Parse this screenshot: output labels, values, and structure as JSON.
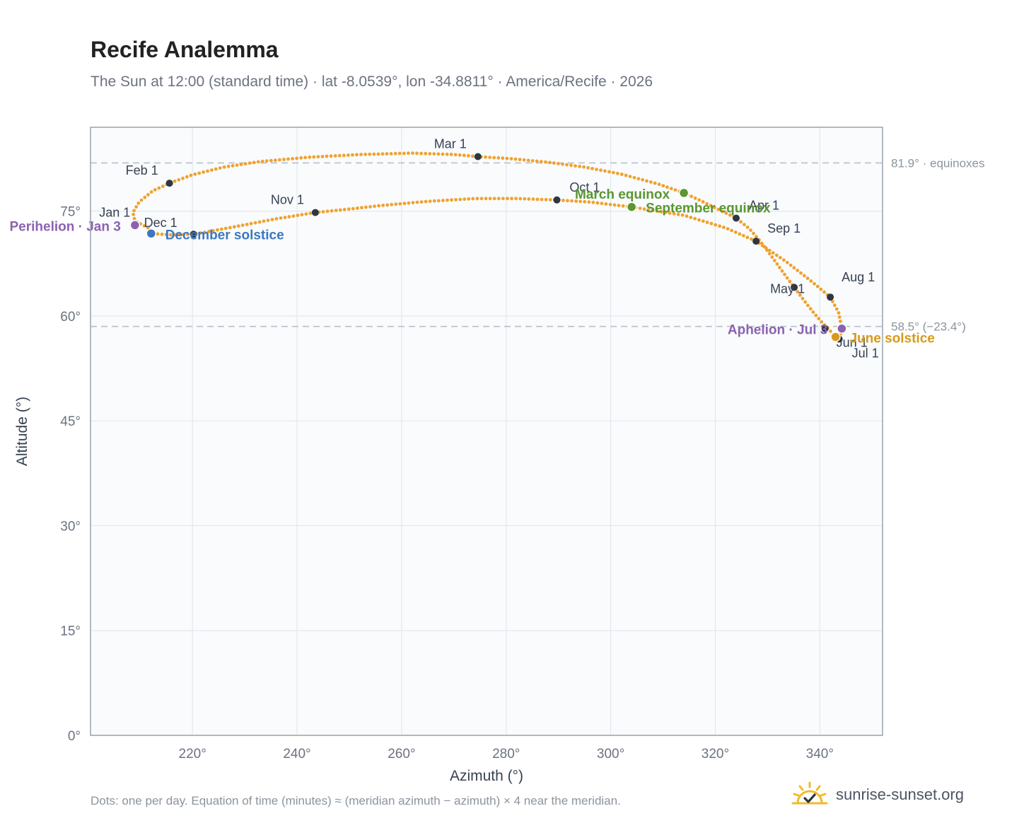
{
  "header": {
    "title": "Recife Analemma",
    "subtitle": "The Sun at 12:00 (standard time) · lat -8.0539°, lon -34.8811° · America/Recife · 2026"
  },
  "footer": {
    "note": "Dots: one per day. Equation of time (minutes) ≈ (meridian azimuth − azimuth) × 4 near the meridian.",
    "brand": "sunrise-sunset.org"
  },
  "icons": {
    "brand": "sun-check-icon"
  },
  "colors": {
    "analemma": "#f0a22e",
    "month_marker": "#2f3640",
    "equinox": "#5a9632",
    "december_solstice": "#3b78c0",
    "june_solstice": "#d89a1a",
    "apsis": "#8c62b0",
    "reference_line": "#b7c0cc",
    "plot_bg": "#f9fbfd",
    "grid": "#e3e8ef",
    "frame": "#9aa3ae"
  },
  "chart_data": {
    "type": "scatter",
    "title": "Recife Analemma",
    "xlabel": "Azimuth (°)",
    "ylabel": "Altitude (°)",
    "xlim": [
      200.5,
      352
    ],
    "ylim": [
      0,
      87
    ],
    "xticks": [
      220,
      240,
      260,
      280,
      300,
      320,
      340
    ],
    "xtick_labels": [
      "220°",
      "240°",
      "260°",
      "280°",
      "300°",
      "320°",
      "340°"
    ],
    "yticks": [
      0,
      15,
      30,
      45,
      60,
      75
    ],
    "ytick_labels": [
      "0°",
      "15°",
      "30°",
      "45°",
      "60°",
      "75°"
    ],
    "grid": true,
    "analemma_path": [
      [
        211.5,
        72.6
      ],
      [
        209.0,
        73.6
      ],
      [
        208.6,
        74.8
      ],
      [
        209.8,
        76.3
      ],
      [
        212.4,
        77.9
      ],
      [
        215.6,
        79.0
      ],
      [
        220.0,
        80.2
      ],
      [
        226.0,
        81.3
      ],
      [
        233.0,
        82.1
      ],
      [
        242.0,
        82.7
      ],
      [
        252.0,
        83.1
      ],
      [
        262.0,
        83.3
      ],
      [
        270.0,
        83.1
      ],
      [
        274.6,
        82.8
      ],
      [
        281.0,
        82.5
      ],
      [
        288.0,
        82.0
      ],
      [
        295.0,
        81.3
      ],
      [
        302.0,
        80.3
      ],
      [
        309.0,
        78.9
      ],
      [
        314.0,
        77.6
      ],
      [
        317.5,
        76.4
      ],
      [
        321.0,
        75.1
      ],
      [
        324.0,
        74.0
      ],
      [
        326.5,
        72.5
      ],
      [
        328.5,
        70.8
      ],
      [
        331.0,
        68.3
      ],
      [
        333.2,
        66.0
      ],
      [
        335.1,
        64.1
      ],
      [
        337.0,
        62.2
      ],
      [
        339.0,
        60.3
      ],
      [
        340.5,
        59.0
      ],
      [
        341.5,
        58.3
      ],
      [
        343.0,
        57.0
      ],
      [
        343.7,
        56.7
      ],
      [
        344.0,
        57.5
      ],
      [
        344.2,
        58.2
      ],
      [
        343.6,
        60.5
      ],
      [
        342.0,
        62.7
      ],
      [
        338.0,
        65.2
      ],
      [
        333.5,
        67.8
      ],
      [
        327.8,
        70.7
      ],
      [
        322.0,
        72.6
      ],
      [
        314.0,
        74.4
      ],
      [
        304.0,
        75.6
      ],
      [
        296.0,
        76.3
      ],
      [
        289.7,
        76.6
      ],
      [
        282.0,
        76.8
      ],
      [
        274.0,
        76.8
      ],
      [
        265.0,
        76.4
      ],
      [
        256.0,
        75.8
      ],
      [
        250.0,
        75.3
      ],
      [
        243.5,
        74.8
      ],
      [
        236.0,
        73.9
      ],
      [
        229.0,
        72.9
      ],
      [
        224.0,
        72.2
      ],
      [
        220.2,
        71.7
      ],
      [
        216.0,
        71.6
      ],
      [
        212.1,
        71.8
      ],
      [
        211.5,
        72.6
      ]
    ],
    "months": [
      {
        "label": "Jan 1",
        "az": 209.2,
        "alt": 73.2
      },
      {
        "label": "Feb 1",
        "az": 215.6,
        "alt": 79.0
      },
      {
        "label": "Mar 1",
        "az": 274.6,
        "alt": 82.8
      },
      {
        "label": "Apr 1",
        "az": 324.0,
        "alt": 74.0
      },
      {
        "label": "May 1",
        "az": 335.1,
        "alt": 64.1
      },
      {
        "label": "Jun 1",
        "az": 341.0,
        "alt": 58.2
      },
      {
        "label": "Jul 1",
        "az": 343.7,
        "alt": 56.7
      },
      {
        "label": "Aug 1",
        "az": 342.0,
        "alt": 62.7
      },
      {
        "label": "Sep 1",
        "az": 327.8,
        "alt": 70.7
      },
      {
        "label": "Oct 1",
        "az": 289.7,
        "alt": 76.6
      },
      {
        "label": "Nov 1",
        "az": 243.5,
        "alt": 74.8
      },
      {
        "label": "Dec 1",
        "az": 220.2,
        "alt": 71.7
      }
    ],
    "events": [
      {
        "label": "March equinox",
        "az": 314.0,
        "alt": 77.6,
        "kind": "equinox"
      },
      {
        "label": "September equinox",
        "az": 304.0,
        "alt": 75.6,
        "kind": "equinox"
      },
      {
        "label": "June solstice",
        "az": 343.0,
        "alt": 57.0,
        "kind": "june_solstice"
      },
      {
        "label": "December solstice",
        "az": 212.1,
        "alt": 71.8,
        "kind": "december_solstice"
      },
      {
        "label": "Perihelion · Jan 3",
        "az": 209.0,
        "alt": 73.0,
        "kind": "apsis"
      },
      {
        "label": "Aphelion · Jul 3",
        "az": 344.2,
        "alt": 58.2,
        "kind": "apsis"
      }
    ],
    "reference_lines": [
      {
        "alt": 81.9,
        "label": "81.9° · equinoxes"
      },
      {
        "alt": 58.5,
        "label": "58.5° (−23.4°)"
      }
    ]
  }
}
